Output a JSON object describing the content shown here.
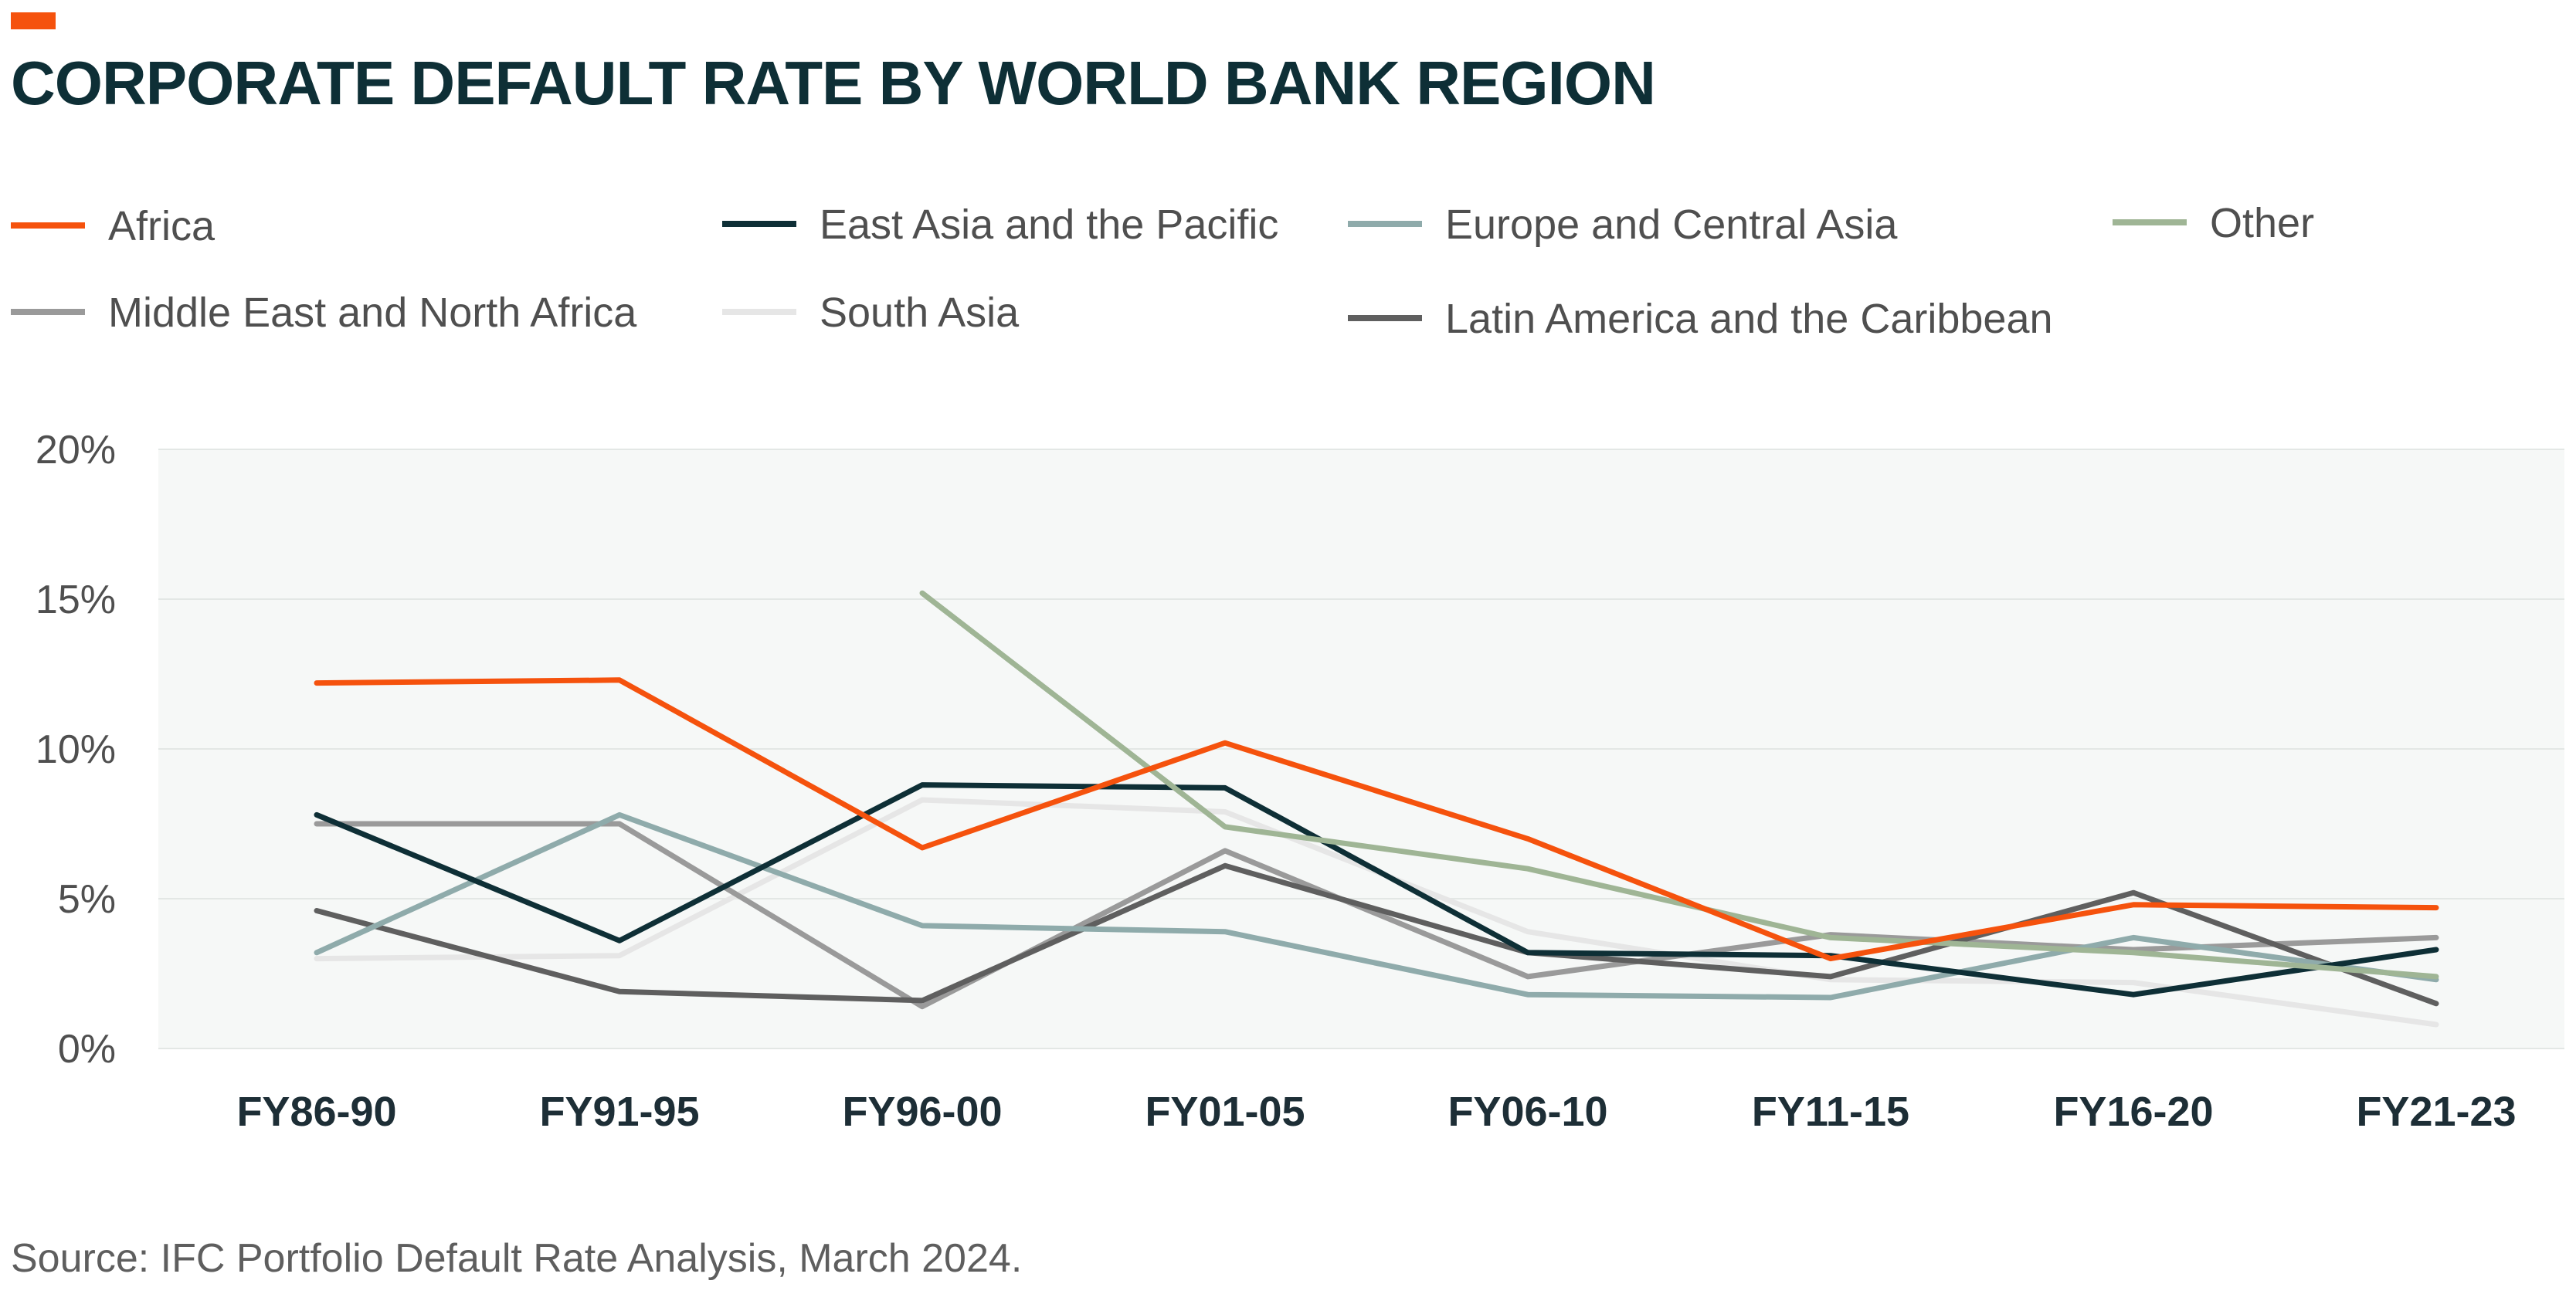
{
  "header": {
    "title": "CORPORATE DEFAULT RATE BY WORLD BANK REGION",
    "accent_color": "#f5520d"
  },
  "footer": {
    "source": "Source: IFC Portfolio Default Rate Analysis, March 2024."
  },
  "chart_data": {
    "type": "line",
    "title": "CORPORATE DEFAULT RATE BY WORLD BANK REGION",
    "xlabel": "",
    "ylabel": "",
    "categories": [
      "FY86-90",
      "FY91-95",
      "FY96-00",
      "FY01-05",
      "FY06-10",
      "FY11-15",
      "FY16-20",
      "FY21-23"
    ],
    "ylim": [
      0,
      20
    ],
    "y_ticks": [
      0,
      5,
      10,
      15,
      20
    ],
    "y_tick_labels": [
      "0%",
      "5%",
      "10%",
      "15%",
      "20%"
    ],
    "grid": true,
    "legend_position": "top",
    "plot_background": "#f6f8f7",
    "series": [
      {
        "name": "Africa",
        "color": "#f5520d",
        "values": [
          12.2,
          12.3,
          6.7,
          10.2,
          7.0,
          3.0,
          4.8,
          4.7
        ]
      },
      {
        "name": "East Asia and the Pacific",
        "color": "#0e2f36",
        "values": [
          7.8,
          3.6,
          8.8,
          8.7,
          3.2,
          3.1,
          1.8,
          3.3
        ]
      },
      {
        "name": "Europe and Central Asia",
        "color": "#8fabab",
        "values": [
          3.2,
          7.8,
          4.1,
          3.9,
          1.8,
          1.7,
          3.7,
          2.3
        ]
      },
      {
        "name": "Other",
        "color": "#9fb595",
        "values": [
          null,
          null,
          15.2,
          7.4,
          6.0,
          3.7,
          3.2,
          2.4
        ]
      },
      {
        "name": "Middle East and North Africa",
        "color": "#9a9a9a",
        "values": [
          7.5,
          7.5,
          1.4,
          6.6,
          2.4,
          3.8,
          3.3,
          3.7
        ]
      },
      {
        "name": "South Asia",
        "color": "#e6e6e6",
        "values": [
          3.0,
          3.1,
          8.3,
          7.9,
          3.9,
          2.3,
          2.2,
          0.8
        ]
      },
      {
        "name": "Latin America and the Caribbean",
        "color": "#5f5f5f",
        "values": [
          4.6,
          1.9,
          1.6,
          6.1,
          3.2,
          2.4,
          5.2,
          1.5
        ]
      }
    ]
  }
}
